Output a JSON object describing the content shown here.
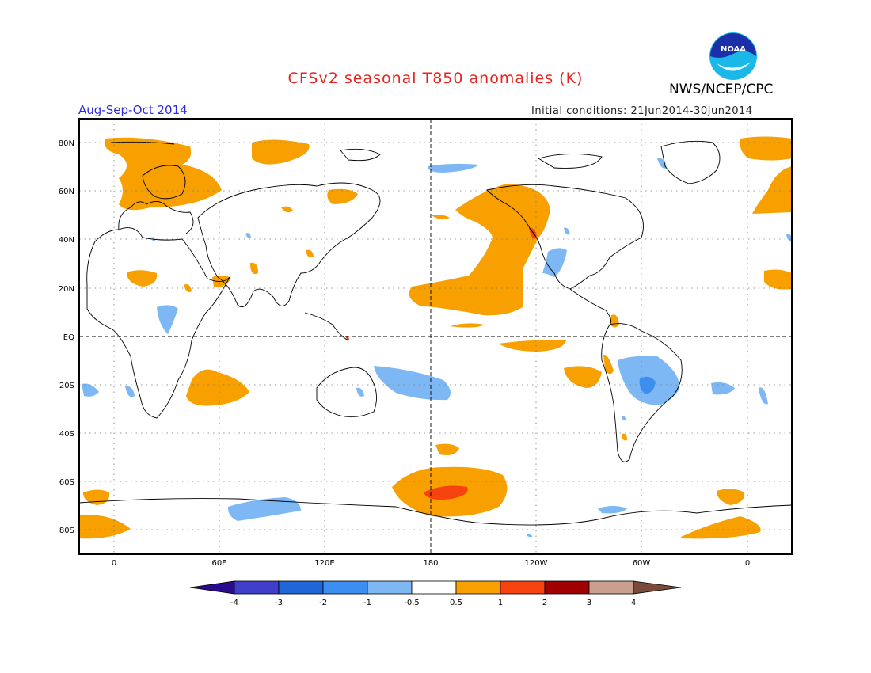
{
  "header": {
    "title": "CFSv2 seasonal T850 anomalies (K)",
    "organization": "NWS/NCEP/CPC",
    "season": "Aug-Sep-Oct 2014",
    "initial_conditions": "Initial conditions: 21Jun2014-30Jun2014",
    "logo_text": "NOAA"
  },
  "map": {
    "lat_labels": [
      "80N",
      "60N",
      "40N",
      "20N",
      "EQ",
      "20S",
      "40S",
      "60S",
      "80S"
    ],
    "lon_labels": [
      "0",
      "60E",
      "120E",
      "180",
      "120W",
      "60W",
      "0"
    ]
  },
  "colorbar": {
    "labels": [
      "-4",
      "-3",
      "-2",
      "-1",
      "-0.5",
      "0.5",
      "1",
      "2",
      "3",
      "4"
    ],
    "colors": {
      "lt_m4": "#2a0b8c",
      "m4_m3": "#3f3fcc",
      "m3_m2": "#2166d6",
      "m2_m1": "#3c8ef0",
      "m1_m05": "#7db8f5",
      "neutral": "#ffffff",
      "p05_p1": "#f7a000",
      "p1_p2": "#f5420f",
      "p2_p3": "#a00000",
      "p3_p4": "#c9a090",
      "gt_p4": "#7a4a3a"
    }
  }
}
